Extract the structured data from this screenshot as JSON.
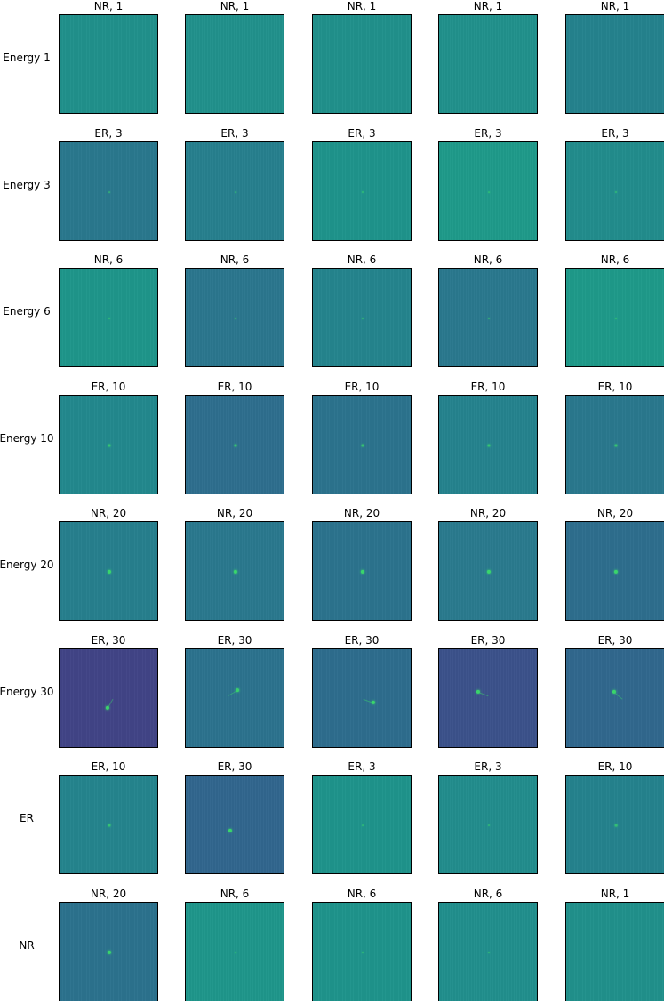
{
  "chart_data": {
    "type": "heatmap",
    "description_rows": "8 rows x 5 columns of small image panels",
    "rows": [
      {
        "label": "Energy 1",
        "panels": [
          {
            "title": "NR, 1",
            "bg": "#21918c",
            "spot": 0.0
          },
          {
            "title": "NR, 1",
            "bg": "#21918c",
            "spot": 0.0
          },
          {
            "title": "NR, 1",
            "bg": "#21918c",
            "spot": 0.0
          },
          {
            "title": "NR, 1",
            "bg": "#21918c",
            "spot": 0.0
          },
          {
            "title": "NR, 1",
            "bg": "#25838e",
            "spot": 0.0
          }
        ]
      },
      {
        "label": "Energy 3",
        "panels": [
          {
            "title": "ER, 3",
            "bg": "#2a788e",
            "spot": 0.25
          },
          {
            "title": "ER, 3",
            "bg": "#277f8e",
            "spot": 0.2
          },
          {
            "title": "ER, 3",
            "bg": "#1f948c",
            "spot": 0.3
          },
          {
            "title": "ER, 3",
            "bg": "#1f9a8a",
            "spot": 0.25
          },
          {
            "title": "ER, 3",
            "bg": "#228d8d",
            "spot": 0.3
          }
        ]
      },
      {
        "label": "Energy 6",
        "panels": [
          {
            "title": "NR, 6",
            "bg": "#1f968b",
            "spot": 0.3
          },
          {
            "title": "NR, 6",
            "bg": "#2b768e",
            "spot": 0.3
          },
          {
            "title": "NR, 6",
            "bg": "#25858e",
            "spot": 0.3
          },
          {
            "title": "NR, 6",
            "bg": "#2a788e",
            "spot": 0.3
          },
          {
            "title": "NR, 6",
            "bg": "#1f9a8a",
            "spot": 0.3
          }
        ]
      },
      {
        "label": "Energy 10",
        "panels": [
          {
            "title": "ER, 10",
            "bg": "#23898e",
            "spot": 0.6
          },
          {
            "title": "ER, 10",
            "bg": "#2e6e8e",
            "spot": 0.6
          },
          {
            "title": "ER, 10",
            "bg": "#2c738e",
            "spot": 0.6
          },
          {
            "title": "ER, 10",
            "bg": "#25838e",
            "spot": 0.6
          },
          {
            "title": "ER, 10",
            "bg": "#2a788e",
            "spot": 0.6
          }
        ]
      },
      {
        "label": "Energy 20",
        "panels": [
          {
            "title": "NR, 20",
            "bg": "#277f8e",
            "spot": 0.9
          },
          {
            "title": "NR, 20",
            "bg": "#2a788e",
            "spot": 0.9
          },
          {
            "title": "NR, 20",
            "bg": "#2c738e",
            "spot": 0.9
          },
          {
            "title": "NR, 20",
            "bg": "#2a7a8e",
            "spot": 0.9
          },
          {
            "title": "NR, 20",
            "bg": "#2e6e8e",
            "spot": 0.9
          }
        ]
      },
      {
        "label": "Energy 30",
        "panels": [
          {
            "title": "ER, 30",
            "bg": "#414487",
            "spot": 0.9,
            "trail": true
          },
          {
            "title": "ER, 30",
            "bg": "#2c728e",
            "spot": 0.8,
            "trail": true
          },
          {
            "title": "ER, 30",
            "bg": "#2e6d8e",
            "spot": 0.9,
            "trail": true
          },
          {
            "title": "ER, 30",
            "bg": "#3b528b",
            "spot": 0.9,
            "trail": true
          },
          {
            "title": "ER, 30",
            "bg": "#31688e",
            "spot": 0.9,
            "trail": true
          }
        ]
      },
      {
        "label": "ER",
        "panels": [
          {
            "title": "ER, 10",
            "bg": "#25858e",
            "spot": 0.6
          },
          {
            "title": "ER, 30",
            "bg": "#31668e",
            "spot": 0.9
          },
          {
            "title": "ER, 3",
            "bg": "#1f948c",
            "spot": 0.25
          },
          {
            "title": "ER, 3",
            "bg": "#228d8d",
            "spot": 0.3
          },
          {
            "title": "ER, 10",
            "bg": "#25838e",
            "spot": 0.5
          }
        ]
      },
      {
        "label": "NR",
        "panels": [
          {
            "title": "NR, 20",
            "bg": "#2c728e",
            "spot": 0.9
          },
          {
            "title": "NR, 6",
            "bg": "#1f968b",
            "spot": 0.25
          },
          {
            "title": "NR, 6",
            "bg": "#1f948c",
            "spot": 0.3
          },
          {
            "title": "NR, 6",
            "bg": "#218f8d",
            "spot": 0.3
          },
          {
            "title": "NR, 1",
            "bg": "#21918c",
            "spot": 0.0
          }
        ]
      }
    ],
    "spot_color": "#3bdc6a"
  }
}
